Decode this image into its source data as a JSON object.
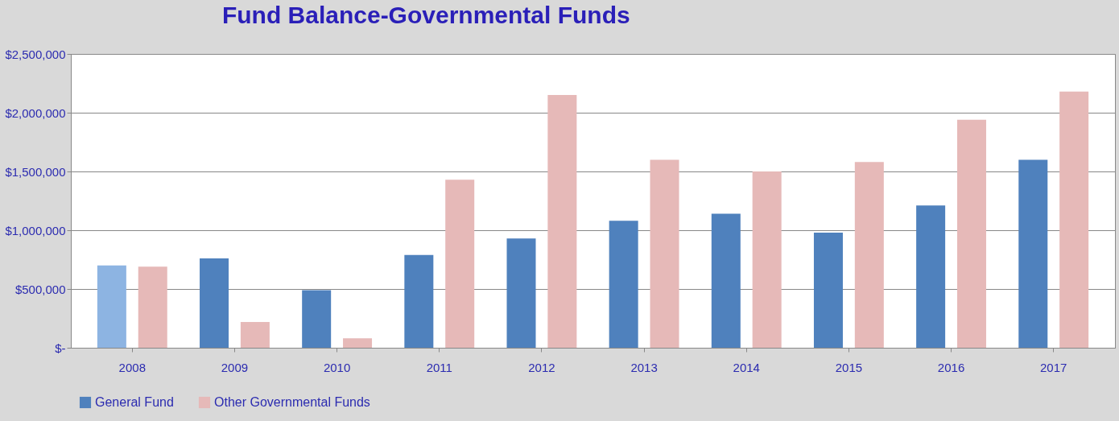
{
  "chart_data": {
    "type": "bar",
    "title": "Fund Balance-Governmental Funds",
    "categories": [
      "2008",
      "2009",
      "2010",
      "2011",
      "2012",
      "2013",
      "2014",
      "2015",
      "2016",
      "2017"
    ],
    "series": [
      {
        "name": "General Fund",
        "color": "#4f81bd",
        "colors": [
          "#8db4e2",
          "#4f81bd",
          "#4f81bd",
          "#4f81bd",
          "#4f81bd",
          "#4f81bd",
          "#4f81bd",
          "#4f81bd",
          "#4f81bd",
          "#4f81bd"
        ],
        "values": [
          700000,
          760000,
          490000,
          790000,
          930000,
          1080000,
          1140000,
          980000,
          1210000,
          1600000
        ]
      },
      {
        "name": "Other Governmental Funds",
        "color": "#e6b9b8",
        "values": [
          690000,
          220000,
          80000,
          1430000,
          2150000,
          1600000,
          1500000,
          1580000,
          1940000,
          2180000
        ]
      }
    ],
    "ylim": [
      0,
      2500000
    ],
    "yticks": [
      {
        "value": 0,
        "label": "$-"
      },
      {
        "value": 500000,
        "label": "$500,000"
      },
      {
        "value": 1000000,
        "label": "$1,000,000"
      },
      {
        "value": 1500000,
        "label": "$1,500,000"
      },
      {
        "value": 2000000,
        "label": "$2,000,000"
      },
      {
        "value": 2500000,
        "label": "$2,500,000"
      }
    ],
    "grid": "y",
    "legend": "bottom"
  }
}
